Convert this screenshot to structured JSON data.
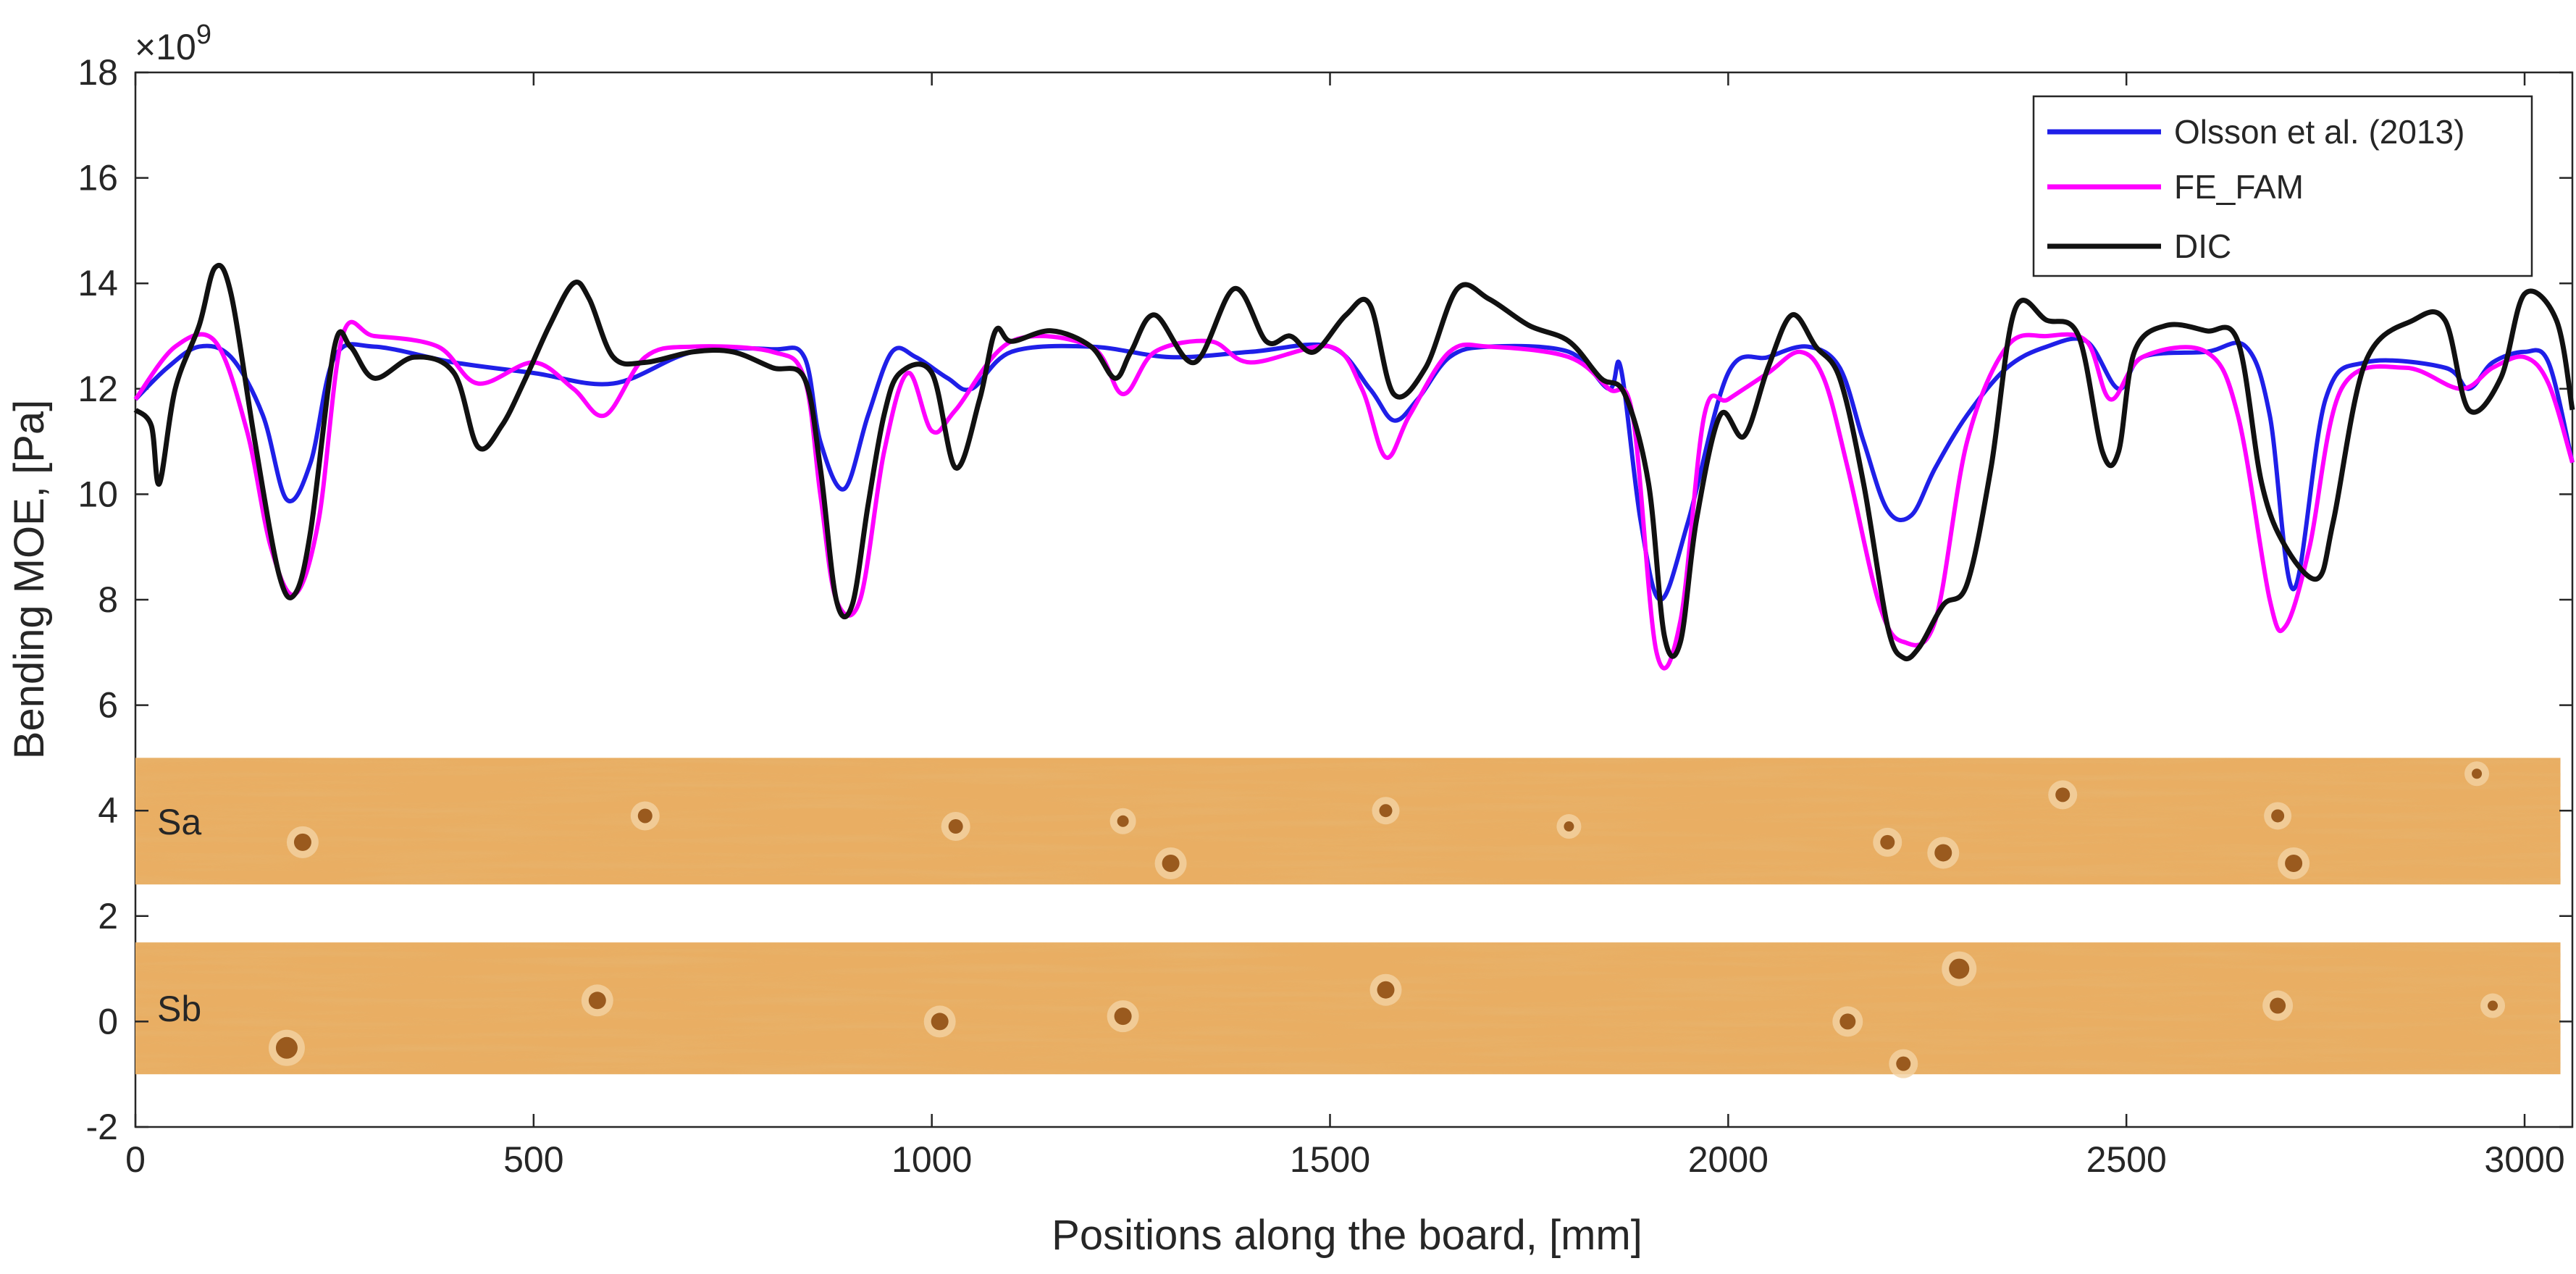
{
  "chart_data": {
    "type": "line",
    "title": "",
    "xlabel": "Positions along the board, [mm]",
    "ylabel": "Bending MOE, [Pa]",
    "y_exponent_label": "×10",
    "y_exponent_power": "9",
    "xlim": [
      0,
      3060
    ],
    "ylim": [
      -2,
      18
    ],
    "xticks": [
      0,
      500,
      1000,
      1500,
      2000,
      2500,
      3000
    ],
    "yticks": [
      -2,
      0,
      2,
      4,
      6,
      8,
      10,
      12,
      14,
      16,
      18
    ],
    "grid": false,
    "legend_position": "top-right",
    "series": [
      {
        "name": "Olsson et al. (2013)",
        "color": "#1f1fe8",
        "x": [
          0,
          40,
          80,
          120,
          160,
          190,
          220,
          250,
          300,
          400,
          500,
          600,
          700,
          800,
          840,
          860,
          890,
          920,
          950,
          980,
          1020,
          1050,
          1100,
          1200,
          1300,
          1400,
          1500,
          1550,
          1580,
          1610,
          1650,
          1700,
          1800,
          1850,
          1865,
          1890,
          1915,
          1950,
          2000,
          2050,
          2100,
          2140,
          2170,
          2200,
          2230,
          2260,
          2300,
          2350,
          2400,
          2450,
          2490,
          2520,
          2600,
          2650,
          2680,
          2710,
          2750,
          2800,
          2900,
          2930,
          2960,
          3000,
          3030,
          3060
        ],
        "values": [
          11.8,
          12.4,
          12.8,
          12.6,
          11.5,
          9.9,
          10.6,
          12.6,
          12.8,
          12.5,
          12.3,
          12.1,
          12.7,
          12.75,
          12.6,
          11.0,
          10.1,
          11.5,
          12.7,
          12.6,
          12.2,
          12.0,
          12.7,
          12.8,
          12.6,
          12.7,
          12.8,
          12.0,
          11.4,
          11.8,
          12.6,
          12.8,
          12.7,
          12.0,
          12.4,
          9.5,
          8.0,
          9.5,
          12.3,
          12.6,
          12.8,
          12.4,
          11.0,
          9.7,
          9.6,
          10.5,
          11.5,
          12.4,
          12.8,
          12.9,
          12.0,
          12.6,
          12.7,
          12.8,
          11.5,
          8.2,
          11.8,
          12.5,
          12.4,
          12.0,
          12.5,
          12.7,
          12.5,
          10.6
        ]
      },
      {
        "name": "FE_FAM",
        "color": "#ff00ff",
        "x": [
          0,
          50,
          100,
          140,
          170,
          200,
          230,
          260,
          300,
          380,
          430,
          500,
          550,
          590,
          640,
          700,
          800,
          840,
          860,
          880,
          910,
          940,
          970,
          1000,
          1030,
          1100,
          1200,
          1240,
          1280,
          1350,
          1400,
          1500,
          1540,
          1570,
          1600,
          1650,
          1700,
          1800,
          1850,
          1880,
          1910,
          1940,
          1970,
          2000,
          2050,
          2090,
          2120,
          2150,
          2190,
          2220,
          2260,
          2300,
          2350,
          2400,
          2450,
          2480,
          2520,
          2600,
          2640,
          2680,
          2700,
          2730,
          2770,
          2850,
          2920,
          2960,
          3000,
          3030,
          3060
        ],
        "values": [
          11.8,
          12.8,
          12.9,
          11.2,
          9.0,
          8.1,
          9.5,
          13.0,
          13.0,
          12.8,
          12.1,
          12.5,
          12.0,
          11.5,
          12.6,
          12.8,
          12.7,
          12.2,
          10.0,
          8.0,
          8.0,
          10.8,
          12.3,
          11.2,
          11.6,
          12.9,
          12.8,
          11.9,
          12.7,
          12.9,
          12.5,
          12.8,
          12.0,
          10.7,
          11.5,
          12.7,
          12.8,
          12.6,
          12.0,
          11.5,
          7.0,
          7.6,
          11.5,
          11.8,
          12.3,
          12.7,
          12.2,
          10.5,
          7.9,
          7.2,
          7.6,
          11.0,
          12.8,
          13.0,
          12.9,
          11.8,
          12.6,
          12.7,
          11.5,
          8.0,
          7.5,
          9.0,
          12.0,
          12.4,
          12.0,
          12.4,
          12.6,
          12.1,
          10.6
        ]
      },
      {
        "name": "DIC",
        "color": "#111111",
        "x": [
          0,
          20,
          30,
          50,
          80,
          100,
          120,
          150,
          180,
          200,
          220,
          250,
          270,
          300,
          350,
          400,
          430,
          460,
          490,
          520,
          550,
          570,
          600,
          640,
          700,
          750,
          800,
          840,
          860,
          880,
          900,
          920,
          940,
          960,
          1000,
          1030,
          1060,
          1080,
          1100,
          1150,
          1200,
          1230,
          1250,
          1280,
          1330,
          1380,
          1420,
          1450,
          1480,
          1520,
          1550,
          1580,
          1620,
          1660,
          1700,
          1750,
          1800,
          1840,
          1870,
          1900,
          1920,
          1940,
          1960,
          1990,
          2020,
          2050,
          2080,
          2110,
          2140,
          2170,
          2200,
          2220,
          2240,
          2270,
          2300,
          2330,
          2360,
          2400,
          2440,
          2470,
          2490,
          2510,
          2550,
          2600,
          2640,
          2670,
          2700,
          2740,
          2760,
          2800,
          2860,
          2900,
          2930,
          2970,
          3000,
          3040,
          3060
        ],
        "values": [
          11.6,
          11.3,
          10.2,
          12.0,
          13.2,
          14.3,
          13.8,
          11.0,
          8.5,
          8.1,
          9.3,
          12.8,
          12.8,
          12.2,
          12.6,
          12.3,
          10.9,
          11.3,
          12.2,
          13.2,
          14.0,
          13.7,
          12.6,
          12.5,
          12.7,
          12.7,
          12.4,
          12.2,
          10.5,
          8.0,
          7.9,
          9.8,
          11.5,
          12.3,
          12.3,
          10.5,
          11.8,
          13.1,
          12.9,
          13.1,
          12.8,
          12.2,
          12.7,
          13.4,
          12.5,
          13.9,
          12.9,
          13.0,
          12.7,
          13.4,
          13.6,
          11.9,
          12.4,
          13.9,
          13.7,
          13.2,
          12.9,
          12.2,
          11.9,
          10.2,
          7.3,
          7.2,
          9.5,
          11.5,
          11.1,
          12.4,
          13.4,
          12.8,
          12.2,
          10.2,
          7.5,
          6.9,
          7.1,
          7.9,
          8.3,
          10.5,
          13.5,
          13.3,
          13.0,
          10.8,
          10.8,
          12.7,
          13.2,
          13.1,
          12.9,
          10.2,
          9.0,
          8.4,
          9.5,
          12.5,
          13.3,
          13.3,
          11.6,
          12.2,
          13.8,
          13.3,
          11.6
        ]
      }
    ],
    "images": [
      {
        "label": "Sa",
        "y_range": [
          2.6,
          5.0
        ],
        "x_range": [
          0,
          3045
        ]
      },
      {
        "label": "Sb",
        "y_range": [
          -1.0,
          1.5
        ],
        "x_range": [
          0,
          3045
        ]
      }
    ]
  }
}
